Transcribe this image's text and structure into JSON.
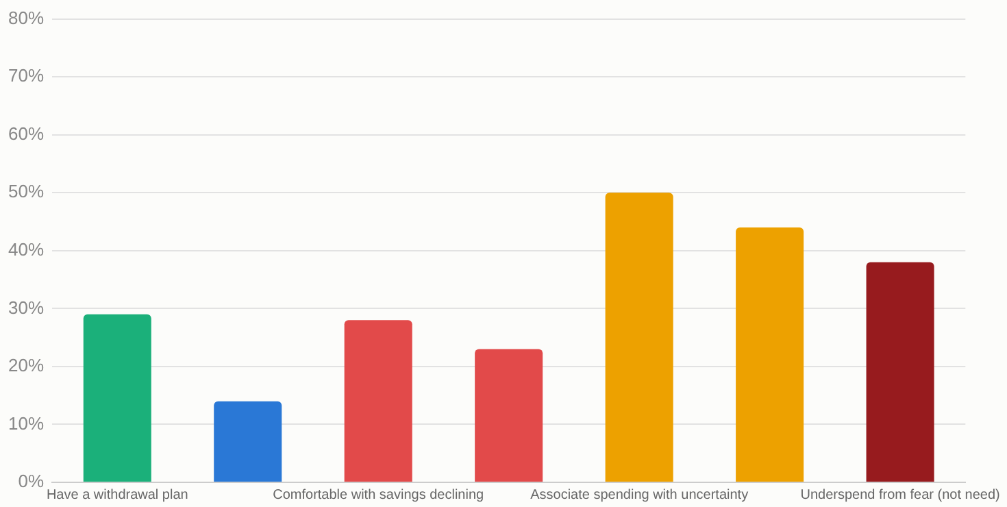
{
  "chart_data": {
    "type": "bar",
    "categories": [
      "Have a withdrawal plan",
      null,
      "Comfortable with savings declining",
      null,
      "Associate spending with uncertainty",
      null,
      "Underspend from fear (not need)"
    ],
    "values": [
      29,
      14,
      28,
      23,
      50,
      44,
      38
    ],
    "colors": [
      "#1bb07a",
      "#2a78d6",
      "#e24a4a",
      "#e24a4a",
      "#eda100",
      "#eda100",
      "#971b1e"
    ],
    "ylim": [
      0,
      80
    ],
    "yticks": [
      {
        "value": 0,
        "label": "0%"
      },
      {
        "value": 10,
        "label": "10%"
      },
      {
        "value": 20,
        "label": "20%"
      },
      {
        "value": 30,
        "label": "30%"
      },
      {
        "value": 40,
        "label": "40%"
      },
      {
        "value": 50,
        "label": "50%"
      },
      {
        "value": 60,
        "label": "60%"
      },
      {
        "value": 70,
        "label": "70%"
      },
      {
        "value": 80,
        "label": "80%"
      }
    ],
    "grid": "y",
    "legend": false
  }
}
